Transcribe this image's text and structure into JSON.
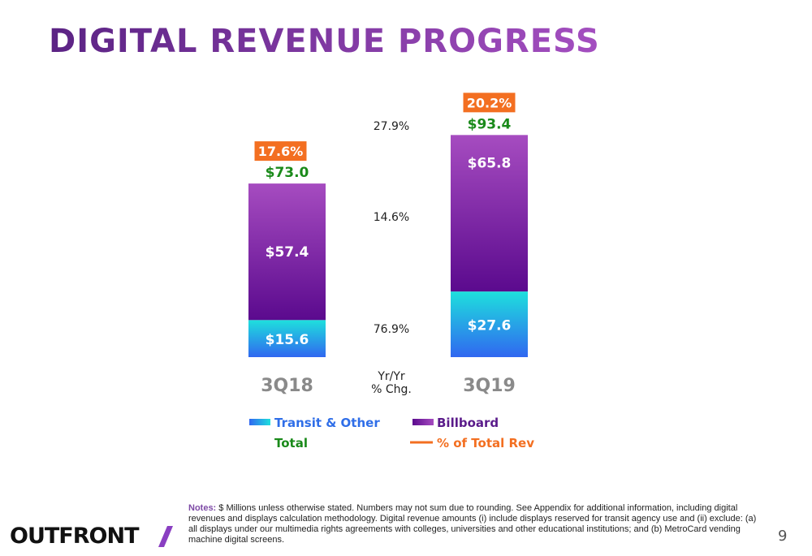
{
  "title": "DIGITAL REVENUE PROGRESS",
  "colors": {
    "title_start": "#5b2384",
    "title_end": "#a44fc0",
    "transit_top": "#1ee0dd",
    "transit_bottom": "#3067f0",
    "billboard_top": "#a64cc0",
    "billboard_bottom": "#5b0a8e",
    "total_label": "#1a8a1a",
    "pct_badge": "#f36f21",
    "category_label": "#8a8a8a",
    "legend_transit": "#2f6ee8",
    "legend_billboard": "#5a1b8a",
    "legend_total": "#1a8a1a",
    "legend_pct": "#f36f21"
  },
  "chart_data": {
    "type": "bar",
    "stacked": true,
    "categories": [
      "3Q18",
      "3Q19"
    ],
    "series": [
      {
        "name": "Transit & Other",
        "values": [
          15.6,
          27.6
        ],
        "labels": [
          "$15.6",
          "$27.6"
        ]
      },
      {
        "name": "Billboard",
        "values": [
          57.4,
          65.8
        ],
        "labels": [
          "$57.4",
          "$65.8"
        ]
      }
    ],
    "totals": {
      "name": "Total",
      "values": [
        73.0,
        93.4
      ],
      "labels": [
        "$73.0",
        "$93.4"
      ]
    },
    "pct_of_total_rev": {
      "name": "% of Total Rev",
      "values": [
        17.6,
        20.2
      ],
      "labels": [
        "17.6%",
        "20.2%"
      ]
    },
    "yoy_change": {
      "label_line1": "Yr/Yr",
      "label_line2": "% Chg.",
      "total": "27.9%",
      "billboard": "14.6%",
      "transit": "76.9%"
    },
    "ylim": [
      0,
      100
    ],
    "grid": false,
    "legend_placement": "bottom"
  },
  "notes": {
    "label": "Notes:",
    "text": "$ Millions unless otherwise stated. Numbers may not sum due to rounding. See Appendix for additional information, including digital revenues and displays calculation methodology. Digital revenue amounts  (i) include displays reserved for transit agency use and (ii) exclude: (a) all displays under our multimedia rights agreements with colleges, universities and other educational institutions; and (b) MetroCard vending machine digital screens."
  },
  "logo": {
    "text": "OUTFRONT"
  },
  "page_number": "9"
}
